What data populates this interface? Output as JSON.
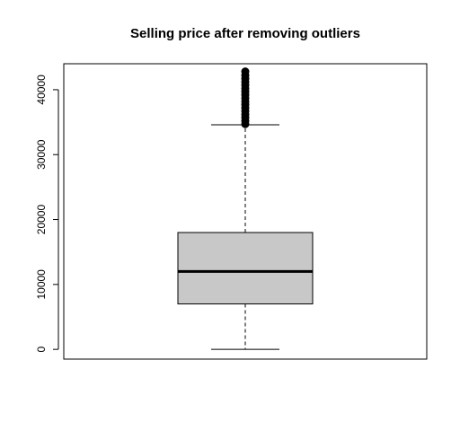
{
  "chart_data": {
    "type": "boxplot",
    "title": "Selling price after removing outliers",
    "xlabel": "",
    "ylabel": "",
    "ylim": [
      -1500,
      44000
    ],
    "yticks": [
      0,
      10000,
      20000,
      30000,
      40000
    ],
    "ytick_labels": [
      "0",
      "10000",
      "20000",
      "30000",
      "40000"
    ],
    "grid": false,
    "box": {
      "whisker_low": 0,
      "q1": 7000,
      "median": 12000,
      "q3": 18000,
      "whisker_high": 34600,
      "outliers": [
        34700,
        35200,
        35700,
        36200,
        36700,
        37200,
        37700,
        38200,
        38700,
        39200,
        39700,
        40200,
        40700,
        41200,
        41700,
        42200,
        42800
      ]
    },
    "colors": {
      "box_fill": "#c8c8c8",
      "stroke": "#000000",
      "outlier_fill": "#000000"
    }
  }
}
